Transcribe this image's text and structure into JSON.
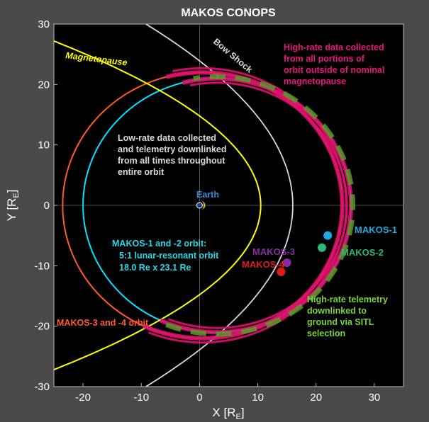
{
  "title": "MAKOS CONOPS",
  "axes": {
    "xlabel_main": "X [R",
    "xlabel_sub": "E",
    "xlabel_end": "]",
    "ylabel_main": "Y [R",
    "ylabel_sub": "E",
    "ylabel_end": "]",
    "xlim": [
      -25,
      35
    ],
    "ylim": [
      -30,
      30
    ],
    "xticks": [
      -20,
      -10,
      0,
      10,
      20,
      30
    ],
    "yticks": [
      -30,
      -20,
      -10,
      0,
      10,
      20,
      30
    ],
    "grid": false,
    "background": "#000000"
  },
  "labels": {
    "magnetopause": "Magnetopause",
    "bow_shock": "Bow Shock",
    "earth": "Earth",
    "makos1": "MAKOS-1",
    "makos2": "MAKOS-2",
    "makos3": "MAKOS-3",
    "makos4": "MAKOS-4"
  },
  "annotations": {
    "high_rate_collect": [
      "High-rate data collected",
      "from all portions of",
      "orbit outside of nominal",
      "magnetopause"
    ],
    "low_rate": [
      "Low-rate data collected",
      "and telemetry downlinked",
      "from all times throughout",
      "entire orbit"
    ],
    "orbit12": [
      "MAKOS-1 and -2 orbit:",
      "5:1 lunar-resonant orbit",
      "18.0 Re x 23.1 Re"
    ],
    "orbit34": "MAKOS-3 and -4 orbit",
    "downlink": [
      "High-rate telemetry",
      "downlinked to",
      "ground via SITL",
      "selection"
    ]
  },
  "colors": {
    "magnetopause": "#ffff00",
    "bow_shock": "#d8d8d8",
    "orbit12_outline": "#00e5ff",
    "orbit34_outline": "#ff5a2a",
    "high_rate_band": "#e0106e",
    "downlink_dash": "#5a9a2a",
    "makos1": "#1fa8e0",
    "makos2": "#2ab87a",
    "makos3": "#8a2aa8",
    "makos4": "#e21a1a",
    "high_rate_text": "#e8187a",
    "low_rate_text": "#d8d8d8",
    "orbit12_text": "#2ad8e8",
    "orbit34_text": "#ff5a2a",
    "downlink_text": "#7ad23a",
    "earth_text": "#3a8ad8"
  },
  "chart_data": {
    "type": "diagram",
    "orbit_makos12": {
      "center": [
        3,
        0
      ],
      "semi_axis_x": 23,
      "semi_axis_y": 21
    },
    "orbit_makos34": {
      "center": [
        0.5,
        0
      ],
      "semi_axis_x": 24,
      "semi_axis_y": 22
    },
    "satellites": [
      {
        "name": "MAKOS-1",
        "x": 22,
        "y": -5
      },
      {
        "name": "MAKOS-2",
        "x": 21,
        "y": -7
      },
      {
        "name": "MAKOS-3",
        "x": 15,
        "y": -9.5
      },
      {
        "name": "MAKOS-4",
        "x": 14,
        "y": -11
      }
    ],
    "earth": {
      "x": 0,
      "y": 0
    }
  }
}
